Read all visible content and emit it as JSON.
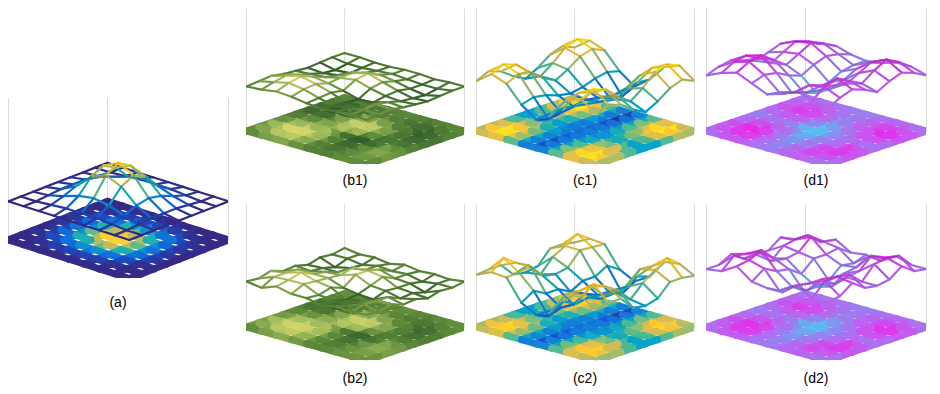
{
  "chart_data": [
    {
      "type": "surface",
      "title": "(a)",
      "tick_labels": false,
      "zlim": [
        0,
        8
      ],
      "clim": [
        3,
        6
      ],
      "colors": [
        "#352a87",
        "#0f5cdd",
        "#1481d6",
        "#06a4ca",
        "#2eb7a4",
        "#87bf77",
        "#d1bb59",
        "#fec832",
        "#f9fb0e"
      ],
      "z": [
        [
          3.0,
          3.0,
          3.0,
          3.0,
          3.0,
          3.0,
          3.0,
          3.0,
          3.0
        ],
        [
          3.0,
          3.0,
          3.1,
          3.2,
          3.2,
          3.2,
          3.1,
          3.0,
          3.0
        ],
        [
          3.0,
          3.1,
          3.4,
          3.8,
          4.0,
          3.8,
          3.4,
          3.1,
          3.0
        ],
        [
          3.0,
          3.2,
          3.8,
          4.9,
          5.4,
          4.9,
          3.8,
          3.2,
          3.0
        ],
        [
          3.0,
          3.2,
          4.0,
          5.4,
          6.0,
          5.4,
          4.0,
          3.2,
          3.0
        ],
        [
          3.0,
          3.2,
          3.8,
          4.9,
          5.4,
          4.9,
          3.8,
          3.2,
          3.0
        ],
        [
          3.0,
          3.1,
          3.4,
          3.8,
          4.0,
          3.8,
          3.4,
          3.1,
          3.0
        ],
        [
          3.0,
          3.0,
          3.1,
          3.2,
          3.2,
          3.2,
          3.1,
          3.0,
          3.0
        ],
        [
          3.0,
          3.0,
          3.0,
          3.0,
          3.0,
          3.0,
          3.0,
          3.0,
          3.0
        ]
      ]
    },
    {
      "type": "surface",
      "title": "(b1)",
      "tick_labels": false,
      "zlim": [
        0,
        8
      ],
      "clim": [
        3.6,
        4.9
      ],
      "colors": [
        "#2f5a2a",
        "#5d8a3a",
        "#a8c060",
        "#e8e070"
      ],
      "z": [
        [
          4.0,
          4.1,
          4.3,
          4.2,
          4.0,
          3.9,
          4.0,
          4.1,
          4.0
        ],
        [
          4.1,
          4.4,
          4.7,
          4.5,
          4.1,
          3.8,
          3.9,
          4.2,
          4.1
        ],
        [
          4.2,
          4.6,
          4.9,
          4.6,
          4.2,
          3.7,
          3.8,
          4.3,
          4.2
        ],
        [
          4.0,
          4.3,
          4.5,
          4.3,
          4.0,
          3.6,
          3.7,
          4.1,
          4.0
        ],
        [
          3.9,
          4.0,
          4.1,
          4.4,
          4.6,
          4.2,
          3.9,
          3.8,
          3.9
        ],
        [
          3.8,
          3.7,
          3.9,
          4.5,
          4.8,
          4.4,
          4.0,
          3.7,
          3.8
        ],
        [
          3.9,
          3.6,
          3.7,
          4.1,
          4.3,
          4.1,
          3.8,
          3.6,
          3.9
        ],
        [
          4.0,
          3.8,
          3.8,
          3.9,
          4.0,
          3.9,
          3.8,
          3.8,
          4.0
        ],
        [
          4.0,
          4.0,
          3.9,
          3.9,
          4.0,
          4.0,
          3.9,
          4.0,
          4.0
        ]
      ]
    },
    {
      "type": "surface",
      "title": "(c1)",
      "tick_labels": false,
      "zlim": [
        0,
        8
      ],
      "clim": [
        2,
        6
      ],
      "colors": [
        "#352a87",
        "#0f5cdd",
        "#1481d6",
        "#06a4ca",
        "#2eb7a4",
        "#87bf77",
        "#d1bb59",
        "#fec832",
        "#f9fb0e"
      ],
      "z": [
        [
          4.5,
          5.5,
          5.0,
          3.5,
          2.5,
          3.5,
          5.0,
          5.5,
          4.5
        ],
        [
          5.0,
          6.0,
          5.5,
          3.8,
          2.2,
          3.6,
          5.3,
          6.0,
          5.0
        ],
        [
          4.6,
          5.6,
          5.2,
          3.6,
          2.4,
          3.4,
          5.0,
          5.6,
          4.6
        ],
        [
          3.8,
          4.6,
          4.4,
          3.2,
          2.6,
          3.2,
          4.2,
          4.6,
          3.8
        ],
        [
          3.2,
          3.8,
          3.8,
          3.0,
          2.8,
          3.0,
          3.6,
          3.8,
          3.2
        ],
        [
          3.8,
          4.6,
          4.4,
          3.2,
          2.6,
          3.2,
          4.2,
          4.6,
          3.8
        ],
        [
          4.6,
          5.6,
          5.2,
          3.6,
          2.2,
          3.4,
          5.0,
          5.7,
          4.6
        ],
        [
          5.0,
          6.0,
          5.5,
          3.8,
          2.0,
          3.6,
          5.3,
          6.0,
          5.0
        ],
        [
          4.5,
          5.5,
          5.0,
          3.5,
          2.5,
          3.5,
          5.0,
          5.5,
          4.5
        ]
      ]
    },
    {
      "type": "surface",
      "title": "(d1)",
      "tick_labels": false,
      "zlim": [
        0,
        8
      ],
      "clim": [
        3.4,
        6.8
      ],
      "colors": [
        "#3fd8f0",
        "#8a8cf0",
        "#c060f0",
        "#f020e8"
      ],
      "z": [
        [
          5.0,
          5.6,
          6.0,
          5.4,
          4.8,
          5.2,
          5.8,
          5.4,
          5.0
        ],
        [
          5.4,
          6.2,
          6.6,
          5.8,
          4.6,
          5.0,
          6.0,
          6.2,
          5.6
        ],
        [
          5.6,
          6.4,
          6.8,
          5.6,
          4.2,
          4.6,
          5.6,
          6.6,
          6.0
        ],
        [
          5.2,
          5.8,
          6.0,
          5.0,
          3.8,
          4.4,
          5.2,
          6.0,
          5.6
        ],
        [
          4.8,
          5.0,
          5.2,
          4.6,
          3.4,
          4.2,
          5.0,
          5.4,
          5.0
        ],
        [
          5.2,
          5.6,
          5.8,
          5.2,
          4.0,
          4.6,
          5.6,
          6.2,
          5.6
        ],
        [
          5.6,
          6.2,
          6.4,
          5.6,
          4.6,
          5.2,
          6.2,
          6.8,
          6.0
        ],
        [
          5.4,
          5.8,
          6.0,
          5.4,
          4.8,
          5.4,
          6.0,
          6.2,
          5.6
        ],
        [
          5.0,
          5.2,
          5.4,
          5.0,
          4.8,
          5.0,
          5.4,
          5.4,
          5.0
        ]
      ]
    },
    {
      "type": "surface",
      "title": "(b2)",
      "tick_labels": false,
      "zlim": [
        0,
        8
      ],
      "clim": [
        3.5,
        4.9
      ],
      "colors": [
        "#2f5a2a",
        "#5d8a3a",
        "#a8c060",
        "#e8e070"
      ],
      "z": [
        [
          4.1,
          3.9,
          4.4,
          4.1,
          4.1,
          3.8,
          4.1,
          4.0,
          4.1
        ],
        [
          4.0,
          4.5,
          4.6,
          4.6,
          4.0,
          3.9,
          3.8,
          4.3,
          4.0
        ],
        [
          4.3,
          4.5,
          4.9,
          4.5,
          4.3,
          3.6,
          3.9,
          4.2,
          4.3
        ],
        [
          3.9,
          4.4,
          4.4,
          4.4,
          3.9,
          3.7,
          3.6,
          4.2,
          3.9
        ],
        [
          4.0,
          3.9,
          4.2,
          4.3,
          4.7,
          4.1,
          4.0,
          3.7,
          4.0
        ],
        [
          3.7,
          3.8,
          3.8,
          4.6,
          4.7,
          4.5,
          3.9,
          3.8,
          3.7
        ],
        [
          4.0,
          3.5,
          3.8,
          4.0,
          4.4,
          4.0,
          3.9,
          3.5,
          4.0
        ],
        [
          3.9,
          3.9,
          3.7,
          4.0,
          3.9,
          4.0,
          3.7,
          3.9,
          3.9
        ],
        [
          4.1,
          3.9,
          4.0,
          3.8,
          4.1,
          3.9,
          4.0,
          3.9,
          4.1
        ]
      ]
    },
    {
      "type": "surface",
      "title": "(c2)",
      "tick_labels": false,
      "zlim": [
        0,
        8
      ],
      "clim": [
        1.9,
        6.2
      ],
      "colors": [
        "#352a87",
        "#0f5cdd",
        "#1481d6",
        "#06a4ca",
        "#2eb7a4",
        "#87bf77",
        "#d1bb59",
        "#fec832",
        "#f9fb0e"
      ],
      "z": [
        [
          4.7,
          5.3,
          5.2,
          3.3,
          2.6,
          3.4,
          5.2,
          5.3,
          4.6
        ],
        [
          4.8,
          6.2,
          5.3,
          4.0,
          2.1,
          3.8,
          5.1,
          6.1,
          4.8
        ],
        [
          4.8,
          5.4,
          5.4,
          3.4,
          2.5,
          3.2,
          5.2,
          5.5,
          4.8
        ],
        [
          3.6,
          4.8,
          4.2,
          3.4,
          2.4,
          3.4,
          4.0,
          4.8,
          3.6
        ],
        [
          3.4,
          3.6,
          4.0,
          2.8,
          3.0,
          2.9,
          3.8,
          3.6,
          3.4
        ],
        [
          3.6,
          4.8,
          4.2,
          3.4,
          2.5,
          3.3,
          4.0,
          4.7,
          3.7
        ],
        [
          4.8,
          5.4,
          5.4,
          3.4,
          2.3,
          3.2,
          5.2,
          5.5,
          4.8
        ],
        [
          4.8,
          6.1,
          5.3,
          4.0,
          1.9,
          3.8,
          5.1,
          6.2,
          4.8
        ],
        [
          4.6,
          5.3,
          5.2,
          3.3,
          2.6,
          3.4,
          5.1,
          5.3,
          4.6
        ]
      ]
    },
    {
      "type": "surface",
      "title": "(d2)",
      "tick_labels": false,
      "zlim": [
        0,
        8
      ],
      "clim": [
        3.3,
        6.9
      ],
      "colors": [
        "#3fd8f0",
        "#8a8cf0",
        "#c060f0",
        "#f020e8"
      ],
      "z": [
        [
          5.2,
          5.4,
          6.2,
          5.2,
          5.0,
          5.0,
          6.0,
          5.2,
          5.2
        ],
        [
          5.2,
          6.4,
          6.4,
          6.0,
          4.4,
          5.2,
          5.8,
          6.4,
          5.4
        ],
        [
          5.8,
          6.2,
          6.9,
          5.4,
          4.4,
          4.4,
          5.8,
          6.4,
          6.2
        ],
        [
          5.0,
          6.0,
          5.8,
          5.2,
          3.6,
          4.6,
          5.0,
          6.2,
          5.4
        ],
        [
          5.0,
          4.8,
          5.4,
          4.4,
          3.6,
          4.0,
          5.2,
          5.2,
          5.2
        ],
        [
          5.0,
          5.8,
          5.6,
          5.4,
          3.8,
          4.8,
          5.4,
          6.4,
          5.4
        ],
        [
          5.8,
          6.0,
          6.6,
          5.4,
          4.8,
          5.0,
          6.4,
          6.6,
          6.2
        ],
        [
          5.2,
          6.0,
          5.8,
          5.6,
          4.6,
          5.6,
          5.8,
          6.4,
          5.4
        ],
        [
          5.2,
          5.0,
          5.6,
          4.8,
          5.0,
          4.8,
          5.6,
          5.2,
          5.2
        ]
      ]
    }
  ]
}
